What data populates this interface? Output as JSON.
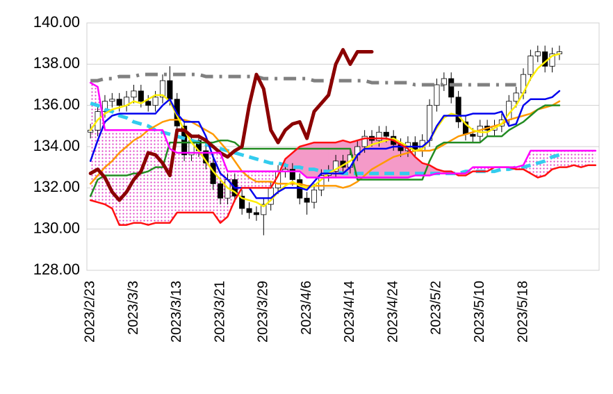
{
  "chart_data": {
    "type": "ichimoku",
    "categories": [
      "2023/2/23",
      null,
      null,
      null,
      null,
      null,
      "2023/3/3",
      null,
      null,
      null,
      null,
      null,
      "2023/3/13",
      null,
      null,
      null,
      null,
      null,
      "2023/3/21",
      null,
      null,
      null,
      null,
      null,
      "2023/3/29",
      null,
      null,
      null,
      null,
      null,
      "2023/4/6",
      null,
      null,
      null,
      null,
      null,
      "2023/4/14",
      null,
      null,
      null,
      null,
      null,
      "2023/4/24",
      null,
      null,
      null,
      null,
      null,
      "2023/5/2",
      null,
      null,
      null,
      null,
      null,
      "2023/5/10",
      null,
      null,
      null,
      null,
      null,
      "2023/5/18",
      null,
      null,
      null,
      null,
      null,
      null,
      null,
      null,
      null,
      null
    ],
    "ylim": [
      128,
      140
    ],
    "yticks": [
      {
        "value": 128,
        "label": "128.00"
      },
      {
        "value": 130,
        "label": "130.00"
      },
      {
        "value": 132,
        "label": "132.00"
      },
      {
        "value": 134,
        "label": "134.00"
      },
      {
        "value": 136,
        "label": "136.00"
      },
      {
        "value": 138,
        "label": "138.00"
      },
      {
        "value": 140,
        "label": "140.00"
      }
    ],
    "grid": true,
    "cloud": {
      "upper_color": "#f49ac8",
      "lower_color": "#e040c8",
      "a": 7,
      "b": 8
    },
    "candles": {
      "up_color": "#ffffff",
      "down_color": "#000000",
      "open": [
        134.7,
        134.8,
        135.7,
        136.2,
        136.3,
        136.0,
        136.4,
        136.7,
        136.2,
        136.0,
        136.4,
        137.2,
        136.3,
        135.0,
        133.6,
        134.3,
        133.8,
        133.2,
        132.2,
        131.5,
        132.4,
        131.6,
        131.0,
        130.8,
        130.7,
        131.2,
        132.0,
        132.8,
        132.9,
        132.4,
        131.5,
        131.3,
        131.9,
        132.6,
        132.8,
        133.3,
        133.0,
        133.6,
        134.0,
        134.5,
        134.3,
        134.7,
        134.5,
        134.1,
        133.8,
        134.2,
        133.8,
        134.3,
        136.0,
        137.0,
        137.3,
        136.4,
        135.2,
        134.6,
        134.5,
        135.0,
        134.8,
        135.0,
        135.3,
        136.2,
        136.6,
        137.5,
        138.4,
        138.6,
        137.9,
        138.5,
        null,
        null,
        null,
        null,
        null
      ],
      "high": [
        135.1,
        136.0,
        136.5,
        136.6,
        136.6,
        136.7,
        137.0,
        137.0,
        136.5,
        136.7,
        137.5,
        137.9,
        136.6,
        135.3,
        134.6,
        134.6,
        134.1,
        133.5,
        132.5,
        132.7,
        132.7,
        131.9,
        131.3,
        131.1,
        131.5,
        132.3,
        133.1,
        133.2,
        133.2,
        132.7,
        131.8,
        132.2,
        132.9,
        133.1,
        133.6,
        133.6,
        133.9,
        134.3,
        134.8,
        134.8,
        135.0,
        135.0,
        134.8,
        134.4,
        134.5,
        134.5,
        134.6,
        136.3,
        137.3,
        137.6,
        137.6,
        136.7,
        135.5,
        134.9,
        135.3,
        135.3,
        135.3,
        135.6,
        136.5,
        136.9,
        137.8,
        138.7,
        138.9,
        138.9,
        138.8,
        138.9,
        null,
        null,
        null,
        null,
        null
      ],
      "low": [
        134.4,
        134.5,
        135.4,
        135.9,
        135.7,
        135.7,
        136.1,
        135.9,
        135.7,
        135.7,
        136.1,
        136.0,
        134.7,
        133.3,
        133.3,
        133.5,
        132.9,
        131.9,
        131.2,
        131.2,
        131.3,
        130.7,
        130.5,
        130.4,
        129.7,
        130.9,
        131.7,
        132.5,
        132.1,
        131.2,
        130.7,
        131.0,
        131.6,
        132.3,
        132.5,
        132.7,
        132.7,
        133.3,
        133.7,
        134.0,
        134.0,
        134.2,
        133.8,
        133.5,
        133.5,
        133.5,
        133.5,
        134.0,
        135.7,
        136.7,
        136.1,
        134.9,
        134.3,
        134.2,
        134.2,
        134.5,
        134.5,
        134.7,
        135.0,
        135.9,
        136.3,
        137.2,
        138.1,
        137.6,
        137.6,
        138.2,
        null,
        null,
        null,
        null,
        null
      ],
      "close": [
        134.8,
        135.7,
        136.2,
        136.3,
        136.0,
        136.4,
        136.7,
        136.2,
        136.0,
        136.4,
        137.2,
        136.3,
        135.0,
        133.6,
        134.3,
        133.8,
        133.2,
        132.2,
        131.5,
        132.4,
        131.6,
        131.0,
        130.8,
        130.7,
        131.2,
        132.0,
        132.8,
        132.9,
        132.4,
        131.5,
        131.3,
        131.9,
        132.6,
        132.8,
        133.3,
        133.0,
        133.6,
        134.0,
        134.5,
        134.3,
        134.7,
        134.5,
        134.1,
        133.8,
        134.2,
        133.8,
        134.3,
        136.0,
        137.0,
        137.3,
        136.4,
        135.2,
        134.6,
        134.5,
        135.0,
        134.8,
        135.0,
        135.3,
        136.2,
        136.6,
        137.5,
        138.4,
        138.6,
        137.9,
        138.5,
        138.6,
        null,
        null,
        null,
        null,
        null
      ]
    },
    "series": [
      {
        "color": "#808080",
        "width": 5,
        "style": "dashdot",
        "values": [
          137.2,
          137.2,
          137.3,
          137.3,
          137.4,
          137.4,
          137.4,
          137.5,
          137.5,
          137.5,
          137.5,
          137.5,
          137.5,
          137.5,
          137.5,
          137.5,
          137.4,
          137.4,
          137.4,
          137.4,
          137.4,
          137.4,
          137.4,
          137.4,
          137.3,
          137.3,
          137.3,
          137.3,
          137.3,
          137.3,
          137.3,
          137.2,
          137.2,
          137.2,
          137.2,
          137.2,
          137.2,
          137.2,
          137.2,
          137.1,
          137.1,
          137.1,
          137.1,
          137.1,
          137.1,
          137.0,
          137.0,
          137.0,
          137.0,
          137.0,
          137.0,
          137.0,
          137.0,
          137.0,
          137.0,
          137.0,
          137.0,
          137.0,
          137.0,
          137.0,
          null,
          null,
          null,
          null,
          null,
          null,
          null,
          null,
          null,
          null,
          null
        ]
      },
      {
        "color": "#33ccee",
        "width": 5,
        "style": "dashed",
        "values": [
          136.1,
          136.0,
          135.8,
          135.7,
          135.5,
          135.4,
          135.2,
          135.1,
          135.0,
          134.8,
          134.7,
          134.6,
          134.5,
          134.4,
          134.3,
          134.2,
          134.1,
          134.0,
          133.9,
          133.8,
          133.7,
          133.6,
          133.5,
          133.4,
          133.3,
          133.2,
          133.2,
          133.1,
          133.0,
          133.0,
          132.9,
          132.9,
          132.8,
          132.8,
          132.8,
          132.7,
          132.7,
          132.7,
          132.7,
          132.7,
          132.7,
          132.7,
          132.7,
          132.7,
          132.7,
          132.7,
          132.7,
          132.7,
          132.7,
          132.7,
          132.7,
          132.7,
          132.8,
          132.8,
          132.8,
          132.8,
          132.8,
          132.9,
          132.9,
          133.0,
          133.0,
          133.1,
          133.2,
          133.3,
          133.5,
          133.6,
          null,
          null,
          null,
          null,
          null
        ]
      },
      {
        "color": "#ff9900",
        "width": 2.5,
        "style": "solid",
        "values": [
          132.2,
          132.6,
          133.0,
          133.3,
          133.7,
          134.0,
          134.3,
          134.5,
          134.8,
          135.0,
          135.2,
          135.3,
          135.3,
          135.3,
          135.2,
          135.0,
          134.8,
          134.6,
          134.2,
          133.8,
          133.3,
          132.8,
          132.5,
          132.3,
          132.3,
          132.3,
          132.2,
          132.2,
          132.2,
          132.2,
          132.1,
          132.1,
          132.1,
          132.1,
          132.1,
          132.0,
          132.1,
          132.3,
          132.6,
          132.9,
          133.1,
          133.3,
          133.5,
          133.6,
          133.7,
          133.8,
          133.8,
          133.8,
          133.9,
          134.1,
          134.3,
          134.5,
          134.6,
          134.7,
          134.8,
          134.9,
          135.0,
          135.1,
          135.3,
          135.4,
          135.5,
          135.6,
          135.8,
          135.9,
          136.0,
          136.2,
          null,
          null,
          null,
          null,
          null
        ]
      },
      {
        "color": "#228b22",
        "width": 2.5,
        "style": "solid",
        "values": [
          131.6,
          132.4,
          132.6,
          132.6,
          132.6,
          132.6,
          132.7,
          132.7,
          132.8,
          133.0,
          133.0,
          134.2,
          134.2,
          134.2,
          134.2,
          134.2,
          134.2,
          134.2,
          134.3,
          134.3,
          134.2,
          133.9,
          133.9,
          133.9,
          133.9,
          133.9,
          133.9,
          133.9,
          133.9,
          133.9,
          133.9,
          133.9,
          133.9,
          133.9,
          133.9,
          133.9,
          133.9,
          132.4,
          132.4,
          132.4,
          132.4,
          132.4,
          132.4,
          132.4,
          132.4,
          132.4,
          132.4,
          133.3,
          134.0,
          134.2,
          134.2,
          134.2,
          134.2,
          134.2,
          134.2,
          134.5,
          134.5,
          134.5,
          134.8,
          135.0,
          135.2,
          135.5,
          135.8,
          136.0,
          136.0,
          136.0,
          null,
          null,
          null,
          null,
          null
        ]
      },
      {
        "color": "#ffee00",
        "width": 2.5,
        "style": "solid",
        "values": [
          134.8,
          135.3,
          135.6,
          135.8,
          135.9,
          136.0,
          136.2,
          136.1,
          136.3,
          136.5,
          136.5,
          136.2,
          135.5,
          134.8,
          134.2,
          133.8,
          133.3,
          132.8,
          132.4,
          132.0,
          131.8,
          131.5,
          131.4,
          131.3,
          131.1,
          131.4,
          131.8,
          132.1,
          132.3,
          132.1,
          132.0,
          132.1,
          132.4,
          132.7,
          132.9,
          133.1,
          133.3,
          133.6,
          133.9,
          134.1,
          134.2,
          134.3,
          134.4,
          134.2,
          134.0,
          133.8,
          133.9,
          134.3,
          134.9,
          135.4,
          135.6,
          135.5,
          135.1,
          134.8,
          134.7,
          134.7,
          134.9,
          135.1,
          135.6,
          136.0,
          136.6,
          137.3,
          137.8,
          138.1,
          138.4,
          138.5,
          null,
          null,
          null,
          null,
          null
        ]
      },
      {
        "color": "#0000ee",
        "width": 2.5,
        "style": "solid",
        "values": [
          133.3,
          134.3,
          135.2,
          135.5,
          135.6,
          135.6,
          135.6,
          135.6,
          135.6,
          135.6,
          136.0,
          136.3,
          135.6,
          135.2,
          135.2,
          135.2,
          134.5,
          133.5,
          132.7,
          132.4,
          132.0,
          132.0,
          132.0,
          131.5,
          131.5,
          131.5,
          131.8,
          132.0,
          132.0,
          132.0,
          131.9,
          132.3,
          132.7,
          132.7,
          132.7,
          132.7,
          133.0,
          133.6,
          133.9,
          133.9,
          133.9,
          133.9,
          134.0,
          134.0,
          134.0,
          134.0,
          134.0,
          134.3,
          135.0,
          135.5,
          135.5,
          135.5,
          135.5,
          135.6,
          135.6,
          135.6,
          135.6,
          135.7,
          135.0,
          135.1,
          136.0,
          136.3,
          136.3,
          136.3,
          136.4,
          136.7,
          null,
          null,
          null,
          null,
          null
        ]
      },
      {
        "color": "#8b0000",
        "width": 5,
        "style": "solid",
        "values": [
          132.7,
          132.9,
          132.5,
          131.8,
          131.4,
          131.8,
          132.4,
          132.8,
          133.7,
          133.6,
          133.2,
          132.6,
          134.8,
          134.8,
          134.5,
          134.5,
          134.3,
          134.0,
          133.7,
          133.5,
          133.8,
          134.0,
          136.0,
          137.5,
          136.8,
          134.8,
          134.2,
          134.8,
          135.1,
          135.2,
          134.4,
          135.7,
          136.1,
          136.5,
          138.0,
          138.7,
          138.0,
          138.6,
          138.6,
          138.6,
          null,
          null,
          null,
          null,
          null,
          null,
          null,
          null,
          null,
          null,
          null,
          null,
          null,
          null,
          null,
          null,
          null,
          null,
          null,
          null,
          null,
          null,
          null,
          null,
          null,
          null,
          null,
          null,
          null,
          null,
          null
        ]
      },
      {
        "color": "#ff1010",
        "width": 2.5,
        "style": "solid",
        "values": [
          131.4,
          131.3,
          131.2,
          131.0,
          130.2,
          130.2,
          130.3,
          130.3,
          130.2,
          130.3,
          130.3,
          130.3,
          130.8,
          130.8,
          130.8,
          130.8,
          130.8,
          130.8,
          130.3,
          130.6,
          131.4,
          132.0,
          132.0,
          132.0,
          132.0,
          132.0,
          132.6,
          133.4,
          133.7,
          134.0,
          134.1,
          134.2,
          134.2,
          134.2,
          134.2,
          134.3,
          134.2,
          134.3,
          134.4,
          134.4,
          134.4,
          134.4,
          134.3,
          134.1,
          133.9,
          133.5,
          133.2,
          133.1,
          132.9,
          132.8,
          132.8,
          132.6,
          132.6,
          132.8,
          132.8,
          132.8,
          133.0,
          133.0,
          133.0,
          132.9,
          132.9,
          132.7,
          132.5,
          132.6,
          132.9,
          133.0,
          133.0,
          133.1,
          133.0,
          133.1,
          133.1
        ]
      },
      {
        "color": "#ff00ff",
        "width": 2.5,
        "style": "solid",
        "values": [
          137.1,
          136.9,
          134.8,
          134.8,
          134.8,
          134.8,
          134.8,
          134.8,
          134.8,
          134.8,
          134.8,
          133.9,
          133.7,
          133.7,
          133.7,
          133.7,
          133.7,
          133.7,
          133.7,
          132.8,
          132.8,
          132.8,
          132.8,
          132.8,
          132.8,
          132.8,
          132.8,
          132.8,
          132.8,
          132.8,
          132.5,
          132.5,
          132.5,
          132.5,
          132.5,
          132.5,
          132.5,
          132.5,
          132.5,
          132.5,
          132.5,
          132.5,
          132.5,
          132.5,
          132.5,
          132.6,
          132.6,
          132.6,
          132.7,
          132.7,
          132.7,
          132.7,
          132.7,
          133.0,
          133.0,
          133.0,
          133.0,
          133.0,
          133.0,
          133.0,
          133.1,
          133.8,
          133.8,
          133.8,
          133.8,
          133.8,
          133.8,
          133.8,
          133.8,
          133.8,
          133.8
        ]
      }
    ]
  }
}
